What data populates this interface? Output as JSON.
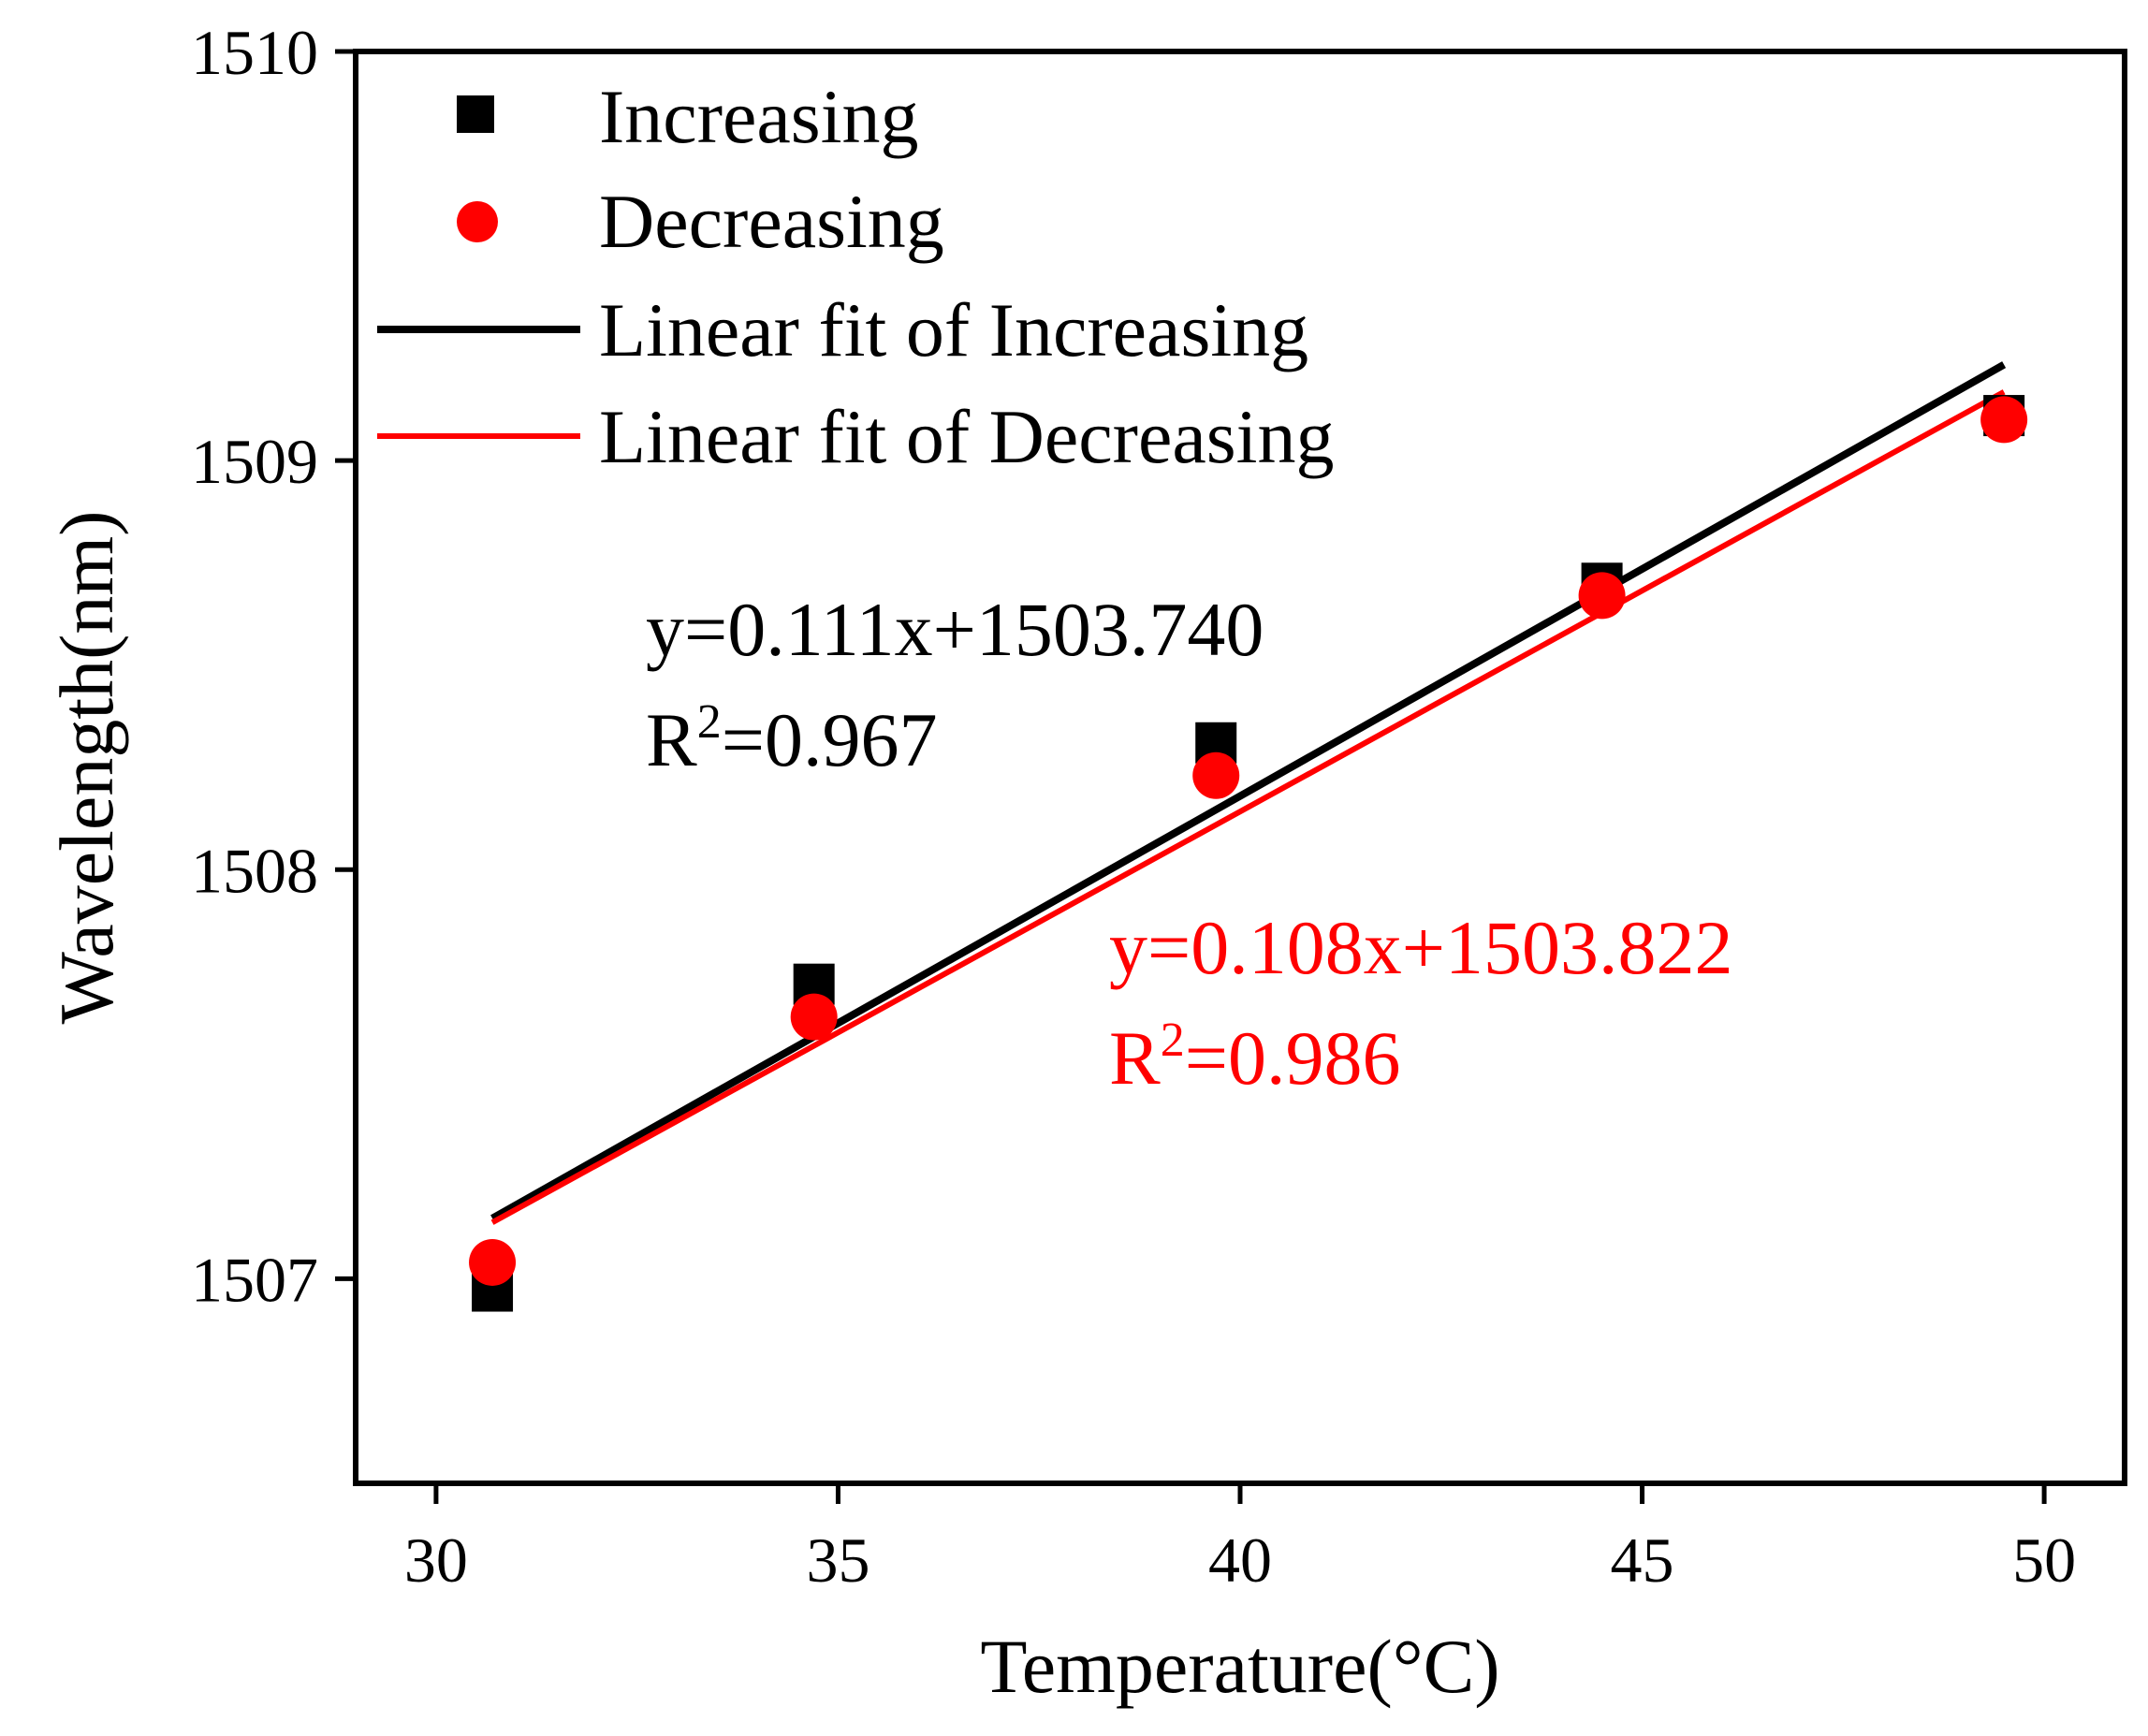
{
  "chart_data": {
    "type": "scatter",
    "xlabel": "Temperature(°C)",
    "ylabel": "Wavelength(nm)",
    "xlim": [
      29,
      51
    ],
    "ylim": [
      1506.5,
      1510
    ],
    "xticks": [
      "30",
      "35",
      "40",
      "45",
      "50"
    ],
    "yticks": [
      "1507",
      "1508",
      "1509",
      "1510"
    ],
    "grid": false,
    "legend_position": "top-left",
    "series": [
      {
        "name": "Increasing",
        "marker": "square",
        "color": "#000000",
        "x": [
          30.7,
          34.7,
          39.7,
          44.5,
          49.5
        ],
        "y": [
          1506.97,
          1507.72,
          1508.31,
          1508.7,
          1509.11
        ]
      },
      {
        "name": "Decreasing",
        "marker": "circle",
        "color": "#ff0000",
        "x": [
          30.7,
          34.7,
          39.7,
          44.5,
          49.5
        ],
        "y": [
          1507.04,
          1507.64,
          1508.23,
          1508.67,
          1509.1
        ]
      }
    ],
    "fits": [
      {
        "name": "Linear fit of Increasing",
        "color": "#000000",
        "slope": 0.111,
        "intercept": 1503.74,
        "x_range": [
          30.7,
          49.5
        ],
        "equation": "y=0.111x+1503.740",
        "r2_prefix": "R",
        "r2_exp": "2",
        "r2_value": "=0.967"
      },
      {
        "name": "Linear fit of Decreasing",
        "color": "#ff0000",
        "slope": 0.108,
        "intercept": 1503.822,
        "x_range": [
          30.7,
          49.5
        ],
        "equation": "y=0.108x+1503.822",
        "r2_prefix": "R",
        "r2_exp": "2",
        "r2_value": "=0.986"
      }
    ]
  }
}
